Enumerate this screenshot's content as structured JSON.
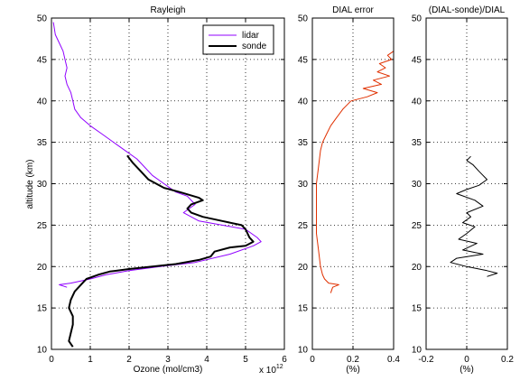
{
  "chart_data": [
    {
      "type": "line",
      "title": "Rayleigh",
      "xlabel": "Ozone (mol/cm3)",
      "ylabel": "altitude (km)",
      "x_multiplier": "x 10",
      "x_exponent": "12",
      "xlim": [
        0,
        6
      ],
      "ylim": [
        10,
        50
      ],
      "xticks": [
        "0",
        "1",
        "2",
        "3",
        "4",
        "5",
        "6"
      ],
      "yticks": [
        "10",
        "15",
        "20",
        "25",
        "30",
        "35",
        "40",
        "45",
        "50"
      ],
      "grid": true,
      "legend_placement": "top-right",
      "series": [
        {
          "name": "lidar",
          "color": "#9000ff",
          "points": [
            [
              0.05,
              49.5
            ],
            [
              0.1,
              48
            ],
            [
              0.2,
              47
            ],
            [
              0.3,
              46
            ],
            [
              0.35,
              45
            ],
            [
              0.4,
              44
            ],
            [
              0.35,
              43
            ],
            [
              0.4,
              42
            ],
            [
              0.5,
              41
            ],
            [
              0.55,
              40
            ],
            [
              0.6,
              39
            ],
            [
              0.75,
              38
            ],
            [
              1.0,
              37
            ],
            [
              1.3,
              36
            ],
            [
              1.6,
              35
            ],
            [
              1.9,
              34
            ],
            [
              2.2,
              33
            ],
            [
              2.4,
              32
            ],
            [
              2.6,
              31
            ],
            [
              2.9,
              30
            ],
            [
              3.2,
              29
            ],
            [
              3.5,
              28.5
            ],
            [
              3.7,
              27.5
            ],
            [
              3.4,
              26.5
            ],
            [
              3.8,
              25.5
            ],
            [
              4.4,
              25
            ],
            [
              5.0,
              24.5
            ],
            [
              5.3,
              23.5
            ],
            [
              5.4,
              23
            ],
            [
              5.2,
              22.5
            ],
            [
              4.6,
              21.5
            ],
            [
              3.7,
              20.5
            ],
            [
              2.8,
              20
            ],
            [
              2.0,
              19.5
            ],
            [
              1.4,
              19
            ],
            [
              1.0,
              18.5
            ],
            [
              0.5,
              18
            ],
            [
              0.2,
              17.8
            ],
            [
              0.4,
              17.5
            ]
          ]
        },
        {
          "name": "sonde",
          "color": "#000000",
          "points": [
            [
              1.95,
              33.4
            ],
            [
              2.1,
              32.5
            ],
            [
              2.3,
              31.5
            ],
            [
              2.5,
              30.5
            ],
            [
              2.9,
              29.5
            ],
            [
              3.3,
              29
            ],
            [
              3.8,
              28.3
            ],
            [
              3.9,
              28
            ],
            [
              3.6,
              27.5
            ],
            [
              3.5,
              27
            ],
            [
              3.6,
              26.5
            ],
            [
              3.9,
              26
            ],
            [
              4.4,
              25.5
            ],
            [
              4.9,
              25
            ],
            [
              5.0,
              24.5
            ],
            [
              5.1,
              23.5
            ],
            [
              5.2,
              23
            ],
            [
              5.0,
              22.5
            ],
            [
              4.6,
              22.3
            ],
            [
              4.2,
              21.8
            ],
            [
              4.1,
              21.2
            ],
            [
              3.8,
              20.8
            ],
            [
              3.2,
              20.3
            ],
            [
              2.6,
              20
            ],
            [
              2.0,
              19.7
            ],
            [
              1.5,
              19.4
            ],
            [
              1.2,
              19
            ],
            [
              0.9,
              18.5
            ],
            [
              0.8,
              18
            ],
            [
              0.7,
              17.5
            ],
            [
              0.6,
              17
            ],
            [
              0.5,
              16
            ],
            [
              0.45,
              15
            ],
            [
              0.55,
              14
            ],
            [
              0.55,
              13
            ],
            [
              0.5,
              12
            ],
            [
              0.45,
              11
            ],
            [
              0.55,
              10.3
            ]
          ]
        }
      ]
    },
    {
      "type": "line",
      "title": "DIAL error",
      "xlabel": "(%)",
      "xlim": [
        0,
        0.4
      ],
      "ylim": [
        10,
        50
      ],
      "xticks": [
        "0",
        "0.2",
        "0.4"
      ],
      "yticks": [
        "10",
        "15",
        "20",
        "25",
        "30",
        "35",
        "40",
        "45",
        "50"
      ],
      "grid": true,
      "series": [
        {
          "color": "#e03000",
          "points": [
            [
              0.09,
              16.8
            ],
            [
              0.1,
              17.5
            ],
            [
              0.13,
              17.8
            ],
            [
              0.08,
              18
            ],
            [
              0.06,
              18.5
            ],
            [
              0.05,
              19
            ],
            [
              0.04,
              20
            ],
            [
              0.03,
              22
            ],
            [
              0.02,
              24
            ],
            [
              0.02,
              26
            ],
            [
              0.02,
              28
            ],
            [
              0.02,
              30
            ],
            [
              0.03,
              32
            ],
            [
              0.04,
              34
            ],
            [
              0.05,
              35
            ],
            [
              0.07,
              36
            ],
            [
              0.09,
              37
            ],
            [
              0.12,
              38
            ],
            [
              0.15,
              39
            ],
            [
              0.19,
              40
            ],
            [
              0.27,
              40.5
            ],
            [
              0.32,
              41
            ],
            [
              0.25,
              41.5
            ],
            [
              0.34,
              42
            ],
            [
              0.3,
              42.5
            ],
            [
              0.38,
              43
            ],
            [
              0.32,
              43.5
            ],
            [
              0.36,
              44
            ],
            [
              0.33,
              44.5
            ],
            [
              0.39,
              45
            ],
            [
              0.37,
              45.5
            ],
            [
              0.4,
              46
            ]
          ]
        }
      ]
    },
    {
      "type": "line",
      "title": "(DIAL-sonde)/DIAL",
      "xlabel": "(%)",
      "xlim": [
        -0.2,
        0.2
      ],
      "ylim": [
        10,
        50
      ],
      "xticks": [
        "-0.2",
        "0",
        "0.2"
      ],
      "yticks": [
        "10",
        "15",
        "20",
        "25",
        "30",
        "35",
        "40",
        "45",
        "50"
      ],
      "grid": true,
      "series": [
        {
          "color": "#000000",
          "points": [
            [
              0.02,
              33.3
            ],
            [
              0.0,
              32.8
            ],
            [
              0.03,
              32.3
            ],
            [
              0.06,
              31.5
            ],
            [
              0.1,
              30.5
            ],
            [
              0.06,
              29.8
            ],
            [
              0.0,
              29.3
            ],
            [
              -0.05,
              28.8
            ],
            [
              0.04,
              28
            ],
            [
              0.08,
              27.3
            ],
            [
              0.0,
              26.5
            ],
            [
              0.02,
              26
            ],
            [
              -0.02,
              25.3
            ],
            [
              0.04,
              24.8
            ],
            [
              0.0,
              24
            ],
            [
              -0.04,
              23.3
            ],
            [
              0.05,
              22.8
            ],
            [
              -0.02,
              22
            ],
            [
              0.08,
              21.5
            ],
            [
              -0.05,
              21
            ],
            [
              -0.08,
              20.5
            ],
            [
              0.0,
              20
            ],
            [
              0.1,
              19.5
            ],
            [
              0.15,
              19.2
            ],
            [
              0.1,
              18.8
            ]
          ]
        }
      ]
    }
  ]
}
